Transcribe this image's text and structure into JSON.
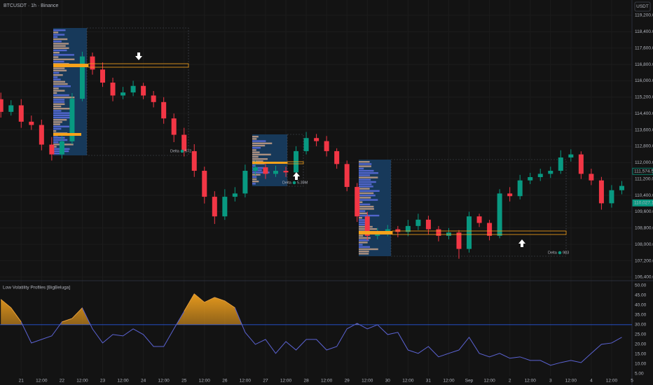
{
  "chart_data": [
    {
      "type": "candlestick",
      "title": "BTCUSDT · 1h · Binance",
      "currency_label": "USDT",
      "x": [
        -12,
        -6,
        0,
        6,
        12,
        18,
        24,
        30,
        36,
        42,
        48,
        54,
        60,
        66,
        72,
        78,
        84,
        90,
        96,
        102,
        108,
        114,
        120,
        126,
        132,
        138,
        144,
        150,
        156,
        162,
        168,
        174,
        180,
        186,
        192,
        198,
        204,
        210,
        216,
        222,
        228,
        234,
        240,
        246,
        252,
        258,
        264,
        270,
        276,
        282,
        288,
        294,
        300,
        306,
        312,
        318,
        324,
        330,
        336,
        342,
        348,
        354
      ],
      "open": [
        115100,
        114480,
        114800,
        114000,
        113840,
        112880,
        112400,
        113040,
        115120,
        117190,
        116550,
        115910,
        115280,
        115430,
        115750,
        115280,
        114960,
        114160,
        113360,
        112560,
        111600,
        110330,
        109370,
        110330,
        110490,
        111600,
        111770,
        111450,
        111600,
        111520,
        112560,
        113200,
        113050,
        112560,
        111930,
        110810,
        109370,
        108420,
        108550,
        108740,
        108610,
        108900,
        109210,
        108740,
        108420,
        108580,
        107780,
        109370,
        109050,
        108420,
        110490,
        110360,
        111130,
        111290,
        111450,
        111600,
        112250,
        112400,
        111450,
        111130,
        110010,
        110650
      ],
      "high": [
        115420,
        115050,
        115100,
        114300,
        114100,
        113250,
        113300,
        115400,
        117420,
        117380,
        116900,
        116150,
        115700,
        116000,
        115900,
        115500,
        115200,
        114400,
        113700,
        112900,
        111800,
        110600,
        110700,
        110800,
        111900,
        112100,
        111950,
        111850,
        111800,
        112800,
        113500,
        113400,
        113300,
        112700,
        112100,
        111000,
        109600,
        108800,
        108950,
        108900,
        109200,
        109500,
        109400,
        108900,
        108800,
        108700,
        109600,
        109500,
        109200,
        110700,
        110800,
        111400,
        111500,
        111700,
        111800,
        112600,
        112650,
        112550,
        111700,
        111300,
        110900,
        111100
      ],
      "low": [
        114200,
        114300,
        113700,
        113600,
        112600,
        112100,
        112200,
        112900,
        115000,
        116300,
        115700,
        115000,
        115100,
        115250,
        115100,
        114700,
        113900,
        113000,
        112300,
        111300,
        110000,
        109000,
        109200,
        110100,
        110300,
        111400,
        111200,
        111300,
        111300,
        111400,
        112400,
        112800,
        112300,
        111700,
        110600,
        109100,
        108200,
        108250,
        108400,
        108350,
        108400,
        108700,
        108500,
        108150,
        108250,
        107300,
        107600,
        108850,
        108200,
        108300,
        110100,
        110200,
        110950,
        111100,
        111250,
        111450,
        112050,
        111200,
        110900,
        109700,
        109800,
        110450
      ],
      "close": [
        114480,
        114800,
        114000,
        113840,
        112880,
        112400,
        113040,
        115120,
        117190,
        116550,
        115910,
        115280,
        115430,
        115750,
        115280,
        114960,
        114160,
        113360,
        112560,
        111600,
        110330,
        109370,
        110330,
        110490,
        111600,
        111770,
        111450,
        111600,
        111520,
        112560,
        113200,
        113050,
        112560,
        111930,
        110810,
        109370,
        108420,
        108550,
        108740,
        108610,
        108900,
        109210,
        108740,
        108420,
        108580,
        107780,
        109370,
        109050,
        108420,
        110490,
        110360,
        111130,
        111290,
        111450,
        111600,
        112250,
        112400,
        111450,
        111130,
        110010,
        110650,
        110860
      ],
      "up_color": "#089981",
      "down_color": "#f23645",
      "xlim": [
        -12.5,
        360
      ],
      "xticks": [
        {
          "value": 0,
          "label": "21"
        },
        {
          "value": 12,
          "label": "12:00"
        },
        {
          "value": 24,
          "label": "22"
        },
        {
          "value": 36,
          "label": "12:00"
        },
        {
          "value": 48,
          "label": "23"
        },
        {
          "value": 60,
          "label": "12:00"
        },
        {
          "value": 72,
          "label": "24"
        },
        {
          "value": 84,
          "label": "12:00"
        },
        {
          "value": 96,
          "label": "25"
        },
        {
          "value": 108,
          "label": "12:00"
        },
        {
          "value": 120,
          "label": "26"
        },
        {
          "value": 132,
          "label": "12:00"
        },
        {
          "value": 144,
          "label": "27"
        },
        {
          "value": 156,
          "label": "12:00"
        },
        {
          "value": 168,
          "label": "28"
        },
        {
          "value": 180,
          "label": "12:00"
        },
        {
          "value": 192,
          "label": "29"
        },
        {
          "value": 204,
          "label": "12:00"
        },
        {
          "value": 216,
          "label": "30"
        },
        {
          "value": 228,
          "label": "12:00"
        },
        {
          "value": 240,
          "label": "31"
        },
        {
          "value": 252,
          "label": "12:00"
        },
        {
          "value": 264,
          "label": "Sep"
        },
        {
          "value": 276,
          "label": "12:00"
        },
        {
          "value": 288,
          "label": "2"
        },
        {
          "value": 300,
          "label": "12:00"
        },
        {
          "value": 312,
          "label": "3"
        },
        {
          "value": 324,
          "label": "12:00"
        },
        {
          "value": 336,
          "label": "4"
        },
        {
          "value": 348,
          "label": "12:00"
        },
        {
          "value": 360,
          "label": "5"
        }
      ],
      "ylim": [
        106260,
        119950
      ],
      "yticks": [
        {
          "value": 106400,
          "label": "106,400.00"
        },
        {
          "value": 107200,
          "label": "107,200.00"
        },
        {
          "value": 108000,
          "label": "108,000.00"
        },
        {
          "value": 108800,
          "label": "108,800.00"
        },
        {
          "value": 109600,
          "label": "109,600.00"
        },
        {
          "value": 110400,
          "label": "110,400.00"
        },
        {
          "value": 111200,
          "label": "111,200.00"
        },
        {
          "value": 112000,
          "label": "112,000.00"
        },
        {
          "value": 112800,
          "label": "112,800.00"
        },
        {
          "value": 113600,
          "label": "113,600.00"
        },
        {
          "value": 114400,
          "label": "114,400.00"
        },
        {
          "value": 115200,
          "label": "115,200.00"
        },
        {
          "value": 116000,
          "label": "116,000.00"
        },
        {
          "value": 116800,
          "label": "116,800.00"
        },
        {
          "value": 117600,
          "label": "117,600.00"
        },
        {
          "value": 118400,
          "label": "118,400.00"
        },
        {
          "value": 119200,
          "label": "119,200.00"
        }
      ],
      "price_tags": [
        {
          "value": 111574.5,
          "label": "111,574.50"
        },
        {
          "value": 110027.16,
          "label": "110,027.16"
        }
      ],
      "annotations": [
        {
          "label": "Delta",
          "value": "572"
        },
        {
          "label": "Delta",
          "value": "5.39M"
        },
        {
          "label": "Delta",
          "value": "983"
        }
      ],
      "grid": true
    },
    {
      "type": "line",
      "title": "Low Volatility Profiles [BigBeluga]",
      "x": [
        -12,
        -6,
        0,
        6,
        12,
        18,
        24,
        30,
        36,
        42,
        48,
        54,
        60,
        66,
        72,
        78,
        84,
        90,
        96,
        102,
        108,
        114,
        120,
        126,
        132,
        138,
        144,
        150,
        156,
        162,
        168,
        174,
        180,
        186,
        192,
        198,
        204,
        210,
        216,
        222,
        228,
        234,
        240,
        246,
        252,
        258,
        264,
        270,
        276,
        282,
        288,
        294,
        300,
        306,
        312,
        318,
        324,
        330,
        336,
        342,
        348,
        354
      ],
      "values": [
        42.9,
        38.6,
        31.4,
        20.7,
        22.5,
        24.3,
        31.4,
        33.2,
        38.6,
        27.9,
        20.7,
        25,
        24.3,
        27.9,
        25,
        18.9,
        18.9,
        27.9,
        36.8,
        45.7,
        41.4,
        43.9,
        42.1,
        38.6,
        26.1,
        20,
        22.5,
        15.4,
        21.4,
        17.1,
        22.5,
        22.5,
        17.1,
        18.9,
        27.9,
        30.7,
        27.9,
        30,
        25,
        26.1,
        17.1,
        15.4,
        18.9,
        13.6,
        15.4,
        17.1,
        23.6,
        15.4,
        13.6,
        15.4,
        12.9,
        13.6,
        11.8,
        11.8,
        9.3,
        10.7,
        11.8,
        10.7,
        15.4,
        20,
        20.7,
        23.6
      ],
      "color": "#5b63d3",
      "fill_color": "#f0a01e",
      "threshold": 30,
      "threshold_color": "#2962ff",
      "ylim": [
        3.9,
        52.1
      ],
      "yticks": [
        {
          "value": 5,
          "label": "5.00"
        },
        {
          "value": 10,
          "label": "10.00"
        },
        {
          "value": 15,
          "label": "15.00"
        },
        {
          "value": 20,
          "label": "20.00"
        },
        {
          "value": 25,
          "label": "25.00"
        },
        {
          "value": 30,
          "label": "30.00"
        },
        {
          "value": 35,
          "label": "35.00"
        },
        {
          "value": 40,
          "label": "40.00"
        },
        {
          "value": 45,
          "label": "45.00"
        },
        {
          "value": 50,
          "label": "50.00"
        }
      ]
    }
  ]
}
